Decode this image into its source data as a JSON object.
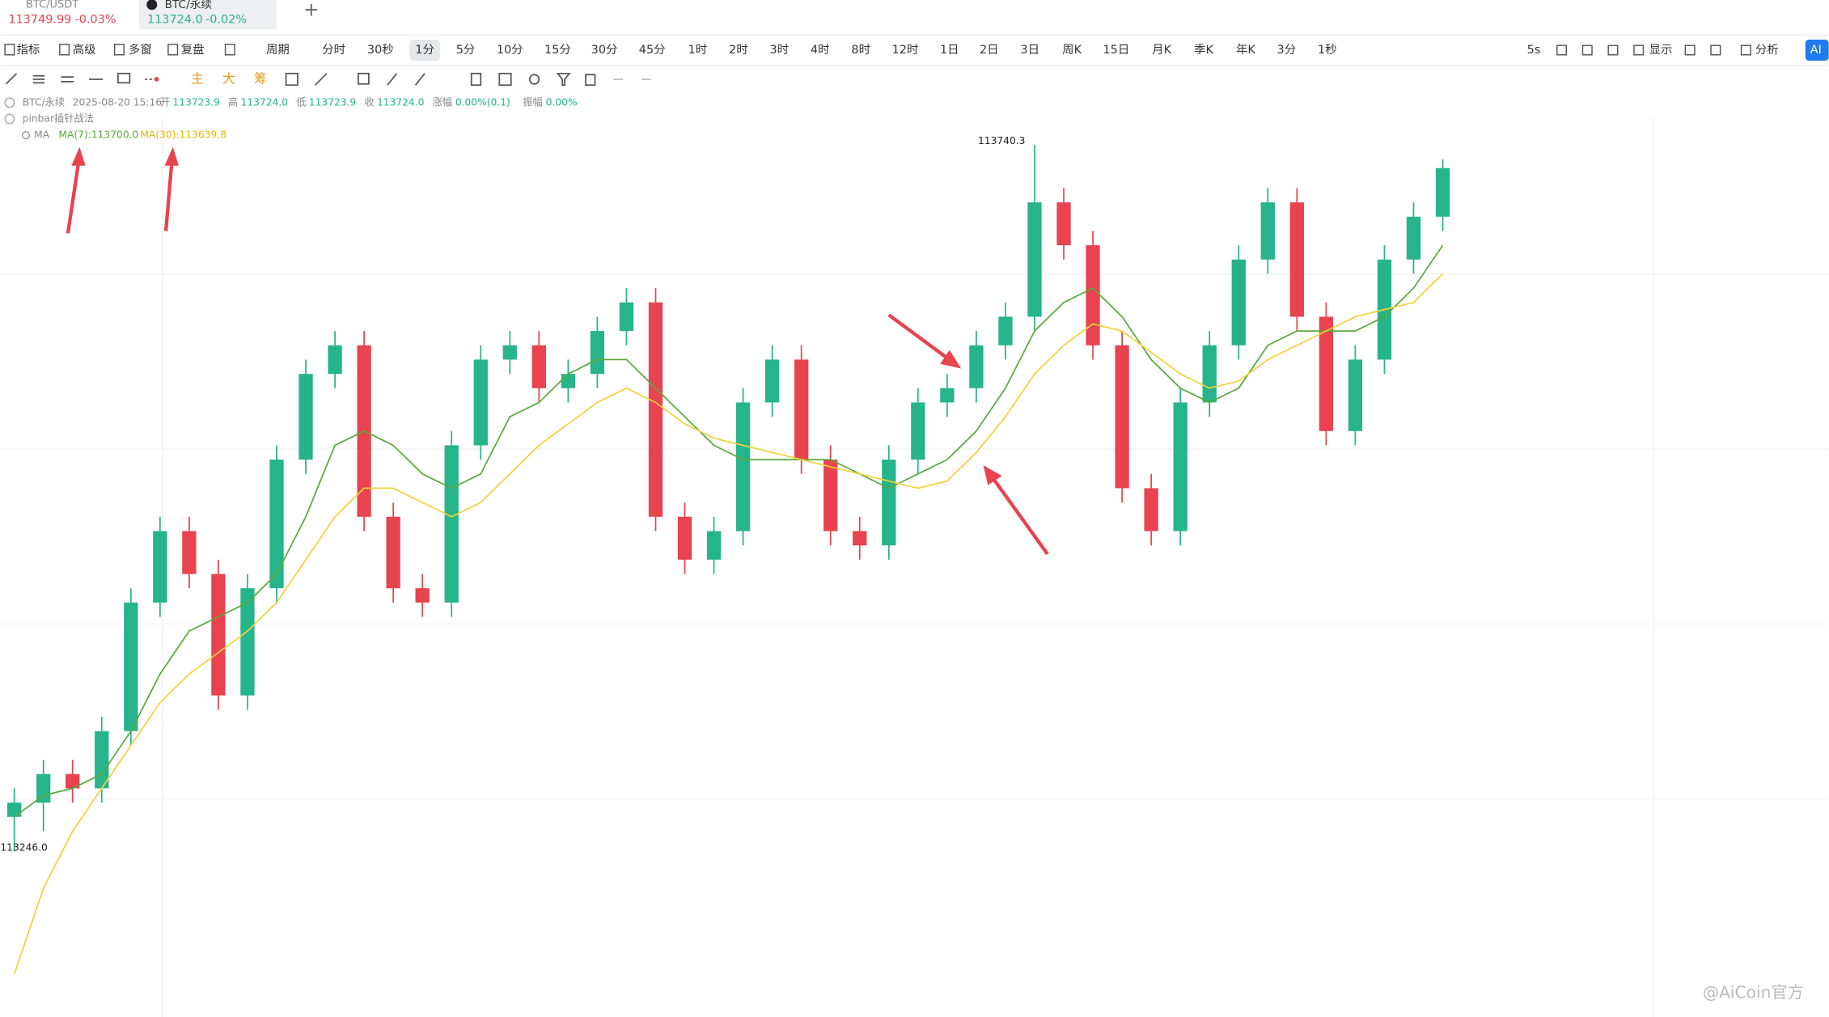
{
  "tabs": [
    {
      "symbol": "BTC/USDT",
      "price": "113749.99",
      "change": "-0.03%"
    },
    {
      "symbol": "BTC/永续",
      "price": "113724.0",
      "change": "-0.02%"
    }
  ],
  "toolbar": {
    "left": [
      "指标",
      "高级",
      "多窗",
      "复盘",
      "周期"
    ],
    "periods": [
      "分时",
      "30秒",
      "1分",
      "5分",
      "10分",
      "15分",
      "30分",
      "45分",
      "1时",
      "2时",
      "3时",
      "4时",
      "8时",
      "12时",
      "1日",
      "2日",
      "3日",
      "周K",
      "15日",
      "月K",
      "季K",
      "年K",
      "3分",
      "1秒"
    ],
    "right": [
      "5s",
      "显示",
      "分析",
      "AI"
    ]
  },
  "drawing_tools": [
    "主",
    "大",
    "筹"
  ],
  "info": {
    "symbol": "BTC/永续",
    "datetime": "2025-08-20 15:16",
    "fields": [
      {
        "label": "开",
        "value": "113723.9"
      },
      {
        "label": "高",
        "value": "113724.0"
      },
      {
        "label": "低",
        "value": "113723.9"
      },
      {
        "label": "收",
        "value": "113724.0"
      },
      {
        "label": "涨幅",
        "value": "0.00%(0.1)"
      },
      {
        "label": "振幅",
        "value": "0.00%"
      }
    ],
    "strategy": "pinbar插针战法",
    "indicator": "MA",
    "ma7": "MA(7):113700.0",
    "ma30": "MA(30):113639.8"
  },
  "chart_data": {
    "type": "candlestick",
    "ylim": [
      113130,
      113760
    ],
    "up_color": "#26b48a",
    "down_color": "#e8434e",
    "max_label": 113740.3,
    "max_index": 35,
    "min_label": {
      "value": 113246,
      "label": "113246.0"
    },
    "min_index": 0,
    "open": [
      113270,
      113280,
      113300,
      113290,
      113330,
      113420,
      113470,
      113440,
      113355,
      113430,
      113520,
      113580,
      113600,
      113480,
      113430,
      113420,
      113530,
      113590,
      113600,
      113570,
      113580,
      113610,
      113630,
      113480,
      113450,
      113470,
      113560,
      113590,
      113520,
      113470,
      113460,
      113520,
      113560,
      113570,
      113600,
      113620,
      113700,
      113670,
      113600,
      113500,
      113470,
      113560,
      113600,
      113660,
      113700,
      113620,
      113540,
      113590,
      113660,
      113690
    ],
    "high": [
      113290,
      113310,
      113310,
      113340,
      113430,
      113480,
      113480,
      113450,
      113440,
      113530,
      113590,
      113610,
      113610,
      113490,
      113440,
      113540,
      113600,
      113610,
      113610,
      113590,
      113620,
      113640,
      113640,
      113490,
      113480,
      113570,
      113600,
      113600,
      113530,
      113480,
      113530,
      113570,
      113580,
      113610,
      113630,
      113740.3,
      113710,
      113680,
      113610,
      113510,
      113570,
      113610,
      113670,
      113710,
      113710,
      113630,
      113600,
      113670,
      113700,
      113730
    ],
    "low": [
      113246,
      113260,
      113280,
      113280,
      113320,
      113410,
      113430,
      113345,
      113345,
      113420,
      113510,
      113570,
      113470,
      113420,
      113410,
      113410,
      113520,
      113580,
      113560,
      113560,
      113570,
      113600,
      113470,
      113440,
      113440,
      113460,
      113550,
      113510,
      113460,
      113450,
      113450,
      113510,
      113550,
      113560,
      113590,
      113610,
      113660,
      113590,
      113490,
      113460,
      113460,
      113550,
      113590,
      113650,
      113610,
      113530,
      113530,
      113580,
      113650,
      113680
    ],
    "close": [
      113280,
      113300,
      113290,
      113330,
      113420,
      113470,
      113440,
      113355,
      113430,
      113520,
      113580,
      113600,
      113480,
      113430,
      113420,
      113530,
      113590,
      113600,
      113570,
      113580,
      113610,
      113630,
      113480,
      113450,
      113470,
      113560,
      113590,
      113520,
      113470,
      113460,
      113520,
      113560,
      113570,
      113600,
      113620,
      113700,
      113670,
      113600,
      113500,
      113470,
      113560,
      113600,
      113660,
      113700,
      113620,
      113540,
      113590,
      113660,
      113690,
      113724
    ],
    "series": [
      {
        "name": "MA(7)",
        "color": "#5aa83a",
        "values": [
          113270,
          113285,
          113290,
          113300,
          113330,
          113370,
          113400,
          113410,
          113420,
          113440,
          113480,
          113530,
          113540,
          113530,
          113510,
          113500,
          113510,
          113550,
          113560,
          113580,
          113590,
          113590,
          113570,
          113550,
          113530,
          113520,
          113520,
          113520,
          113520,
          113510,
          113500,
          113510,
          113520,
          113540,
          113570,
          113610,
          113630,
          113640,
          113620,
          113590,
          113570,
          113560,
          113570,
          113600,
          113610,
          113610,
          113610,
          113620,
          113640,
          113670
        ]
      },
      {
        "name": "MA(30)",
        "color": "#f2d23c",
        "values": [
          113160,
          113220,
          113260,
          113290,
          113320,
          113350,
          113370,
          113385,
          113400,
          113420,
          113450,
          113480,
          113500,
          113500,
          113490,
          113480,
          113490,
          113510,
          113530,
          113545,
          113560,
          113570,
          113560,
          113545,
          113535,
          113530,
          113525,
          113520,
          113515,
          113510,
          113505,
          113500,
          113505,
          113525,
          113550,
          113580,
          113600,
          113615,
          113610,
          113595,
          113580,
          113570,
          113575,
          113590,
          113600,
          113610,
          113620,
          113625,
          113630,
          113650
        ]
      }
    ]
  },
  "watermark": "@AiCoin官方"
}
